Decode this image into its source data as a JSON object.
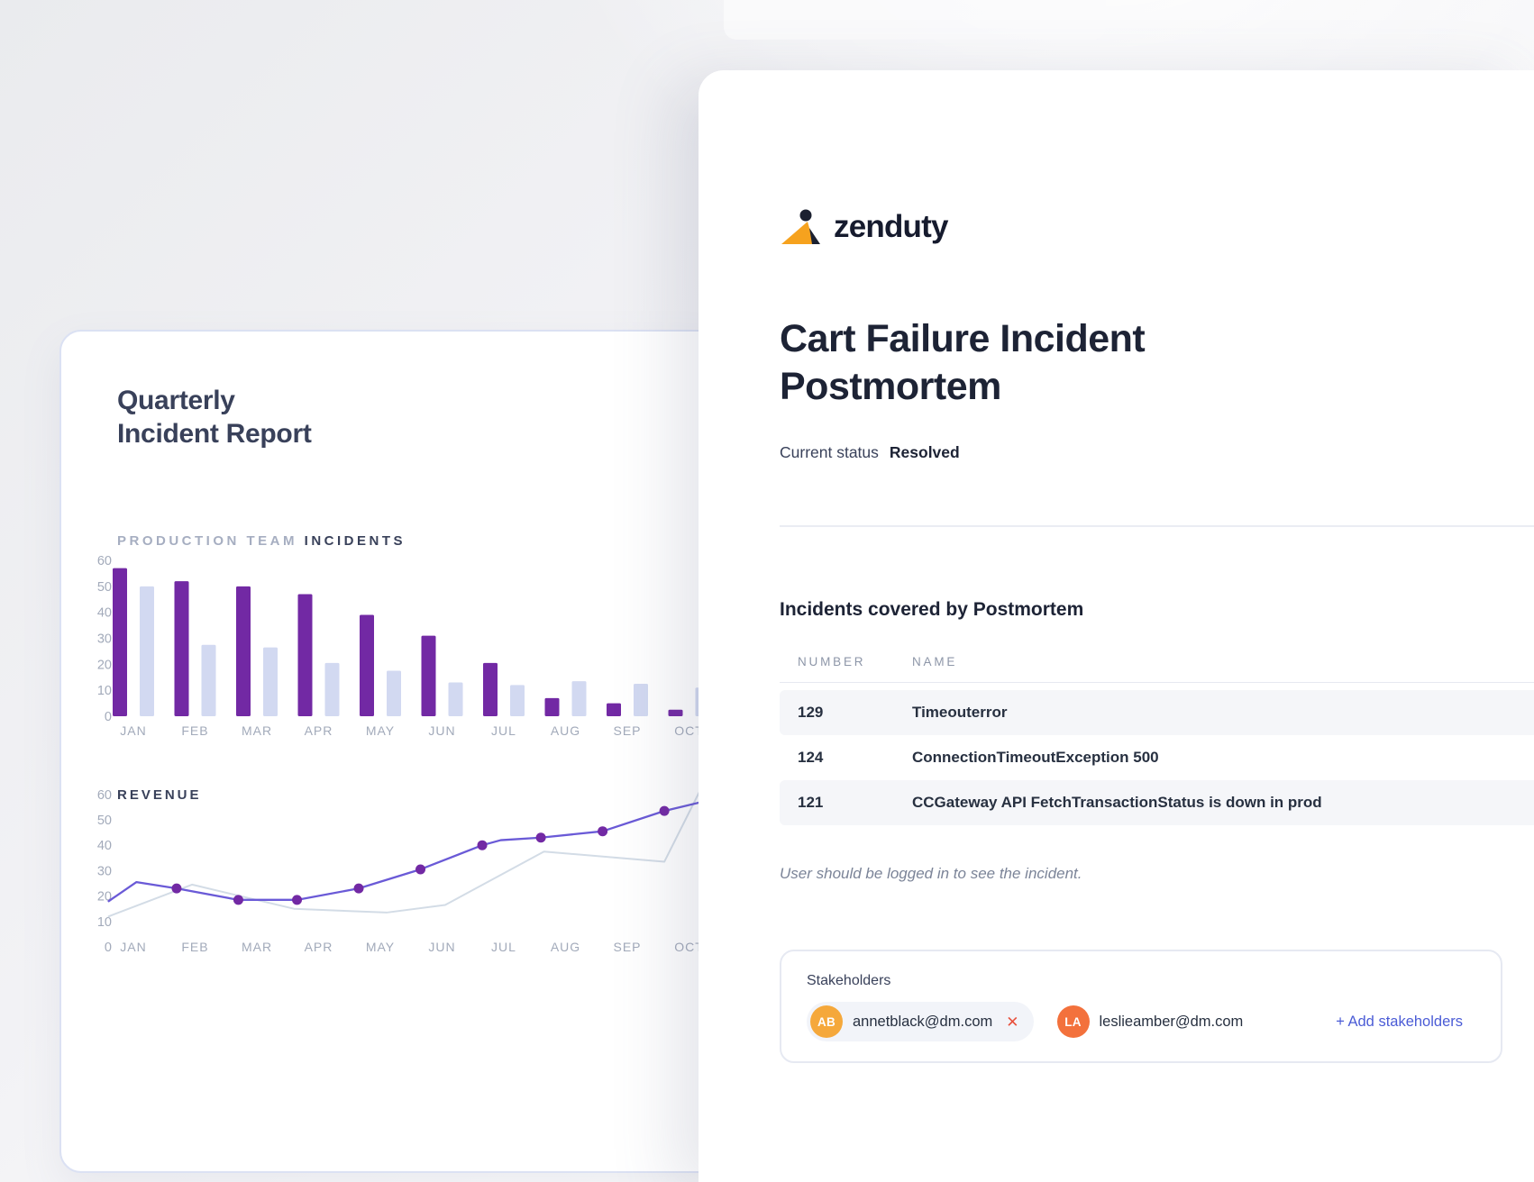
{
  "report_card": {
    "title": "Quarterly\nIncident Report",
    "incidents_label_light": "PRODUCTION TEAM",
    "incidents_label_bold": "INCIDENTS",
    "revenue_label": "REVENUE"
  },
  "chart_data": [
    {
      "type": "bar",
      "title": "PRODUCTION TEAM INCIDENTS",
      "categories": [
        "JAN",
        "FEB",
        "MAR",
        "APR",
        "MAY",
        "JUN",
        "JUL",
        "AUG",
        "SEP",
        "OCT"
      ],
      "series": [
        {
          "name": "incidents-primary",
          "color": "#7229a4",
          "values": [
            57,
            52,
            50,
            47,
            39,
            31,
            20.5,
            7,
            5,
            2.5
          ]
        },
        {
          "name": "incidents-secondary",
          "color": "#d2d9f1",
          "values": [
            50,
            27.5,
            26.5,
            20.5,
            17.5,
            13,
            12,
            13.5,
            12.5,
            11
          ]
        }
      ],
      "ylim": [
        0,
        60
      ],
      "yticks": [
        0,
        10,
        20,
        30,
        40,
        50,
        60
      ],
      "grid": false,
      "legend": "none"
    },
    {
      "type": "line",
      "title": "REVENUE",
      "categories": [
        "JAN",
        "FEB",
        "MAR",
        "APR",
        "MAY",
        "JUN",
        "JUL",
        "AUG",
        "SEP",
        "OCT"
      ],
      "ylim": [
        0,
        60
      ],
      "yticks": [
        0,
        10,
        20,
        30,
        40,
        50,
        60
      ],
      "grid": false,
      "legend": "none",
      "series": [
        {
          "name": "revenue-primary",
          "color": "#6a5ad7",
          "marker_color": "#7229a4",
          "points": [
            {
              "m": -0.4,
              "v": 18,
              "dot": false
            },
            {
              "m": 0.05,
              "v": 25.5,
              "dot": false
            },
            {
              "m": 0.7,
              "v": 23,
              "dot": true
            },
            {
              "m": 1.7,
              "v": 18.5,
              "dot": true
            },
            {
              "m": 2.65,
              "v": 18.5,
              "dot": true
            },
            {
              "m": 3.65,
              "v": 23,
              "dot": true
            },
            {
              "m": 4.65,
              "v": 30.5,
              "dot": true
            },
            {
              "m": 5.65,
              "v": 40,
              "dot": true
            },
            {
              "m": 5.95,
              "v": 42,
              "dot": false
            },
            {
              "m": 6.6,
              "v": 43,
              "dot": true
            },
            {
              "m": 7.6,
              "v": 45.5,
              "dot": true
            },
            {
              "m": 8.6,
              "v": 53.5,
              "dot": true
            },
            {
              "m": 9.2,
              "v": 57,
              "dot": false
            }
          ]
        },
        {
          "name": "revenue-secondary",
          "color": "#d3dce6",
          "points": [
            {
              "m": -0.4,
              "v": 12
            },
            {
              "m": 0.95,
              "v": 24.5
            },
            {
              "m": 2.6,
              "v": 15
            },
            {
              "m": 4.1,
              "v": 13.5
            },
            {
              "m": 5.05,
              "v": 16.5
            },
            {
              "m": 6.65,
              "v": 37.5
            },
            {
              "m": 8.6,
              "v": 33.5
            },
            {
              "m": 9.25,
              "v": 65
            }
          ]
        }
      ]
    }
  ],
  "panel": {
    "brand": "zenduty",
    "title": "Cart Failure Incident Postmortem",
    "status_label": "Current status",
    "status_value": "Resolved",
    "incidents_section": {
      "heading": "Incidents covered by Postmortem",
      "columns": [
        "NUMBER",
        "NAME"
      ],
      "rows": [
        {
          "number": "129",
          "name": "Timeouterror"
        },
        {
          "number": "124",
          "name": "ConnectionTimeoutException 500"
        },
        {
          "number": "121",
          "name": "CCGateway API FetchTransactionStatus is down in prod"
        }
      ],
      "note": "User should be logged in to see the incident."
    },
    "stakeholders": {
      "label": "Stakeholders",
      "items": [
        {
          "initials": "AB",
          "email": "annetblack@dm.com",
          "avatar_color": "#f5a83b",
          "removable": true
        },
        {
          "initials": "LA",
          "email": "leslieamber@dm.com",
          "avatar_color": "#f3713c",
          "removable": false
        }
      ],
      "add_label": "+ Add stakeholders"
    }
  },
  "colors": {
    "bar_primary": "#7229a4",
    "bar_secondary": "#d2d9f1",
    "line_primary": "#6a5ad7",
    "line_secondary": "#d3dce6",
    "marker": "#7229a4",
    "axis_text": "#a2aaba",
    "brand_orange": "#f6a21e",
    "brand_dark": "#1b2030",
    "remove_red": "#e8513d",
    "link_blue": "#4b5cd6"
  }
}
